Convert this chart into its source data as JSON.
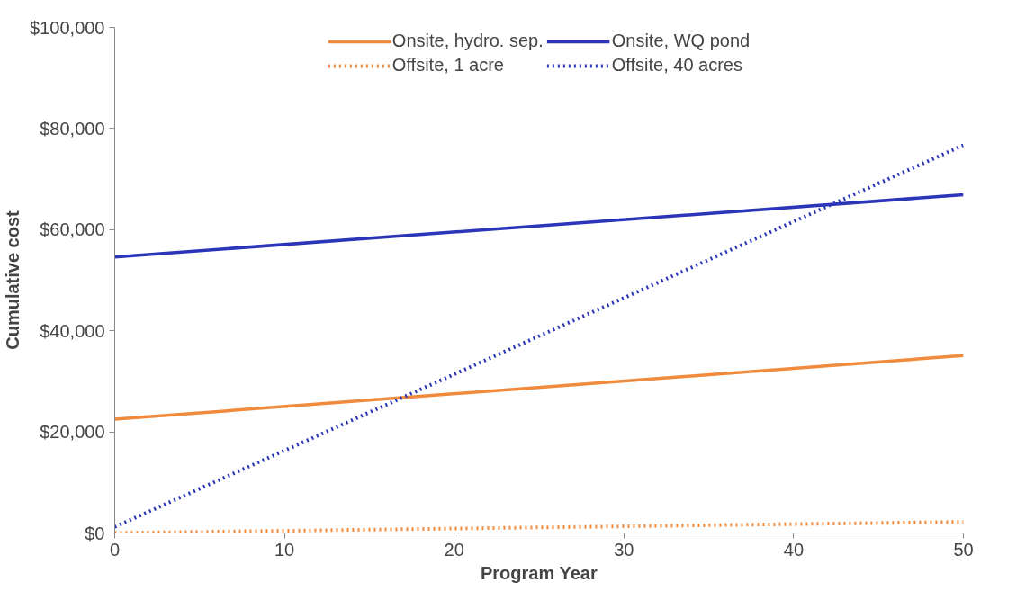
{
  "chart_data": {
    "type": "line",
    "xlabel": "Program Year",
    "ylabel": "Cumulative cost",
    "x": [
      0,
      50
    ],
    "series": [
      {
        "name": "Onsite, hydro. sep.",
        "color": "#f08a3c",
        "values": [
          22500,
          35100
        ],
        "line_style": "solid"
      },
      {
        "name": "Offsite, 1 acre",
        "color": "#f08a3c",
        "values": [
          0,
          2200
        ],
        "line_style": "dotted"
      },
      {
        "name": "Onsite, WQ pond",
        "color": "#2a35b8",
        "values": [
          54600,
          66900
        ],
        "line_style": "solid"
      },
      {
        "name": "Offsite, 40 acres",
        "color": "#2a35b8",
        "values": [
          1200,
          76700
        ],
        "line_style": "dotted"
      }
    ],
    "xlim": [
      0,
      50
    ],
    "ylim": [
      0,
      100000
    ],
    "xticks": [
      0,
      10,
      20,
      30,
      40,
      50
    ],
    "yticks": [
      {
        "value": 0,
        "label": "$0"
      },
      {
        "value": 20000,
        "label": "$20,000"
      },
      {
        "value": 40000,
        "label": "$40,000"
      },
      {
        "value": 60000,
        "label": "$60,000"
      },
      {
        "value": 80000,
        "label": "$80,000"
      },
      {
        "value": 100000,
        "label": "$100,000"
      }
    ],
    "grid": false,
    "legend": "top",
    "marker": "none"
  }
}
